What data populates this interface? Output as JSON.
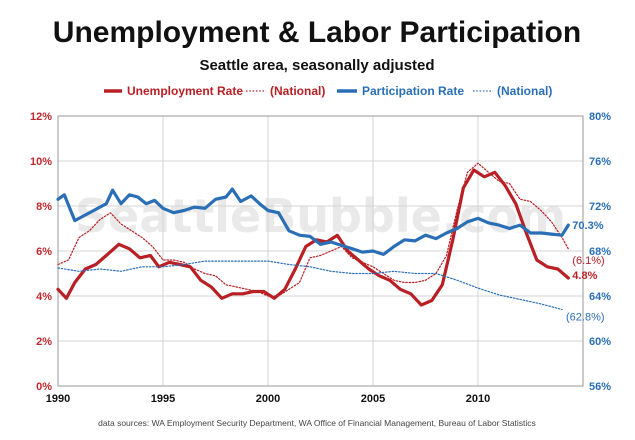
{
  "chart_data": {
    "type": "line",
    "title": "Unemployment & Labor Participation",
    "subtitle": "Seattle area, seasonally adjusted",
    "watermark": "SeattleBubble.com",
    "source": "data sources: WA Employment Security Department, WA Office of Financial Management, Bureau of Labor Statistics",
    "colors": {
      "unemployment": "#b82025",
      "participation": "#2a6fb6",
      "grid": "#d4d4d4"
    },
    "xlim": [
      1990,
      2015
    ],
    "x_ticks": [
      "1990",
      "1995",
      "2000",
      "2005",
      "2010"
    ],
    "y_left": {
      "lim": [
        0,
        12
      ],
      "ticks": [
        "0%",
        "2%",
        "4%",
        "6%",
        "8%",
        "10%",
        "12%"
      ]
    },
    "y_right": {
      "lim": [
        56,
        80
      ],
      "ticks": [
        "56%",
        "60%",
        "64%",
        "68%",
        "72%",
        "76%",
        "80%"
      ]
    },
    "legend_position": "top",
    "series": [
      {
        "name": "Unemployment Rate",
        "axis": "left",
        "style": "solid",
        "points": [
          [
            1990,
            4.3
          ],
          [
            1990.4,
            3.9
          ],
          [
            1990.8,
            4.6
          ],
          [
            1991.3,
            5.2
          ],
          [
            1991.8,
            5.4
          ],
          [
            1992.3,
            5.8
          ],
          [
            1992.9,
            6.3
          ],
          [
            1993.4,
            6.1
          ],
          [
            1993.9,
            5.7
          ],
          [
            1994.4,
            5.8
          ],
          [
            1994.8,
            5.3
          ],
          [
            1995.3,
            5.5
          ],
          [
            1995.8,
            5.4
          ],
          [
            1996.3,
            5.3
          ],
          [
            1996.8,
            4.7
          ],
          [
            1997.3,
            4.4
          ],
          [
            1997.8,
            3.9
          ],
          [
            1998.3,
            4.1
          ],
          [
            1998.8,
            4.1
          ],
          [
            1999.3,
            4.2
          ],
          [
            1999.8,
            4.2
          ],
          [
            2000.3,
            3.9
          ],
          [
            2000.8,
            4.3
          ],
          [
            2001.3,
            5.2
          ],
          [
            2001.8,
            6.2
          ],
          [
            2002.3,
            6.5
          ],
          [
            2002.8,
            6.4
          ],
          [
            2003.3,
            6.7
          ],
          [
            2003.8,
            6.0
          ],
          [
            2004.3,
            5.6
          ],
          [
            2004.8,
            5.2
          ],
          [
            2005.3,
            4.9
          ],
          [
            2005.8,
            4.7
          ],
          [
            2006.3,
            4.3
          ],
          [
            2006.8,
            4.1
          ],
          [
            2007.3,
            3.6
          ],
          [
            2007.8,
            3.8
          ],
          [
            2008.3,
            4.5
          ],
          [
            2008.8,
            6.5
          ],
          [
            2009.3,
            8.8
          ],
          [
            2009.8,
            9.6
          ],
          [
            2010.3,
            9.3
          ],
          [
            2010.8,
            9.5
          ],
          [
            2011.3,
            8.9
          ],
          [
            2011.8,
            8.1
          ],
          [
            2012.3,
            6.8
          ],
          [
            2012.8,
            5.6
          ],
          [
            2013.3,
            5.3
          ],
          [
            2013.8,
            5.2
          ],
          [
            2014.3,
            4.8
          ]
        ]
      },
      {
        "name": "(National)",
        "axis": "left",
        "style": "dotted",
        "points": [
          [
            1990,
            5.4
          ],
          [
            1990.5,
            5.6
          ],
          [
            1991,
            6.6
          ],
          [
            1991.5,
            6.9
          ],
          [
            1992,
            7.4
          ],
          [
            1992.5,
            7.7
          ],
          [
            1993,
            7.2
          ],
          [
            1993.5,
            6.9
          ],
          [
            1994,
            6.6
          ],
          [
            1994.5,
            6.2
          ],
          [
            1995,
            5.6
          ],
          [
            1995.5,
            5.6
          ],
          [
            1996,
            5.5
          ],
          [
            1996.5,
            5.2
          ],
          [
            1997,
            5.0
          ],
          [
            1997.5,
            4.9
          ],
          [
            1998,
            4.5
          ],
          [
            1998.5,
            4.4
          ],
          [
            1999,
            4.3
          ],
          [
            1999.5,
            4.2
          ],
          [
            2000,
            4.0
          ],
          [
            2000.5,
            4.0
          ],
          [
            2001,
            4.3
          ],
          [
            2001.5,
            4.6
          ],
          [
            2002,
            5.7
          ],
          [
            2002.5,
            5.8
          ],
          [
            2003,
            6.0
          ],
          [
            2003.5,
            6.2
          ],
          [
            2004,
            5.7
          ],
          [
            2004.5,
            5.5
          ],
          [
            2005,
            5.3
          ],
          [
            2005.5,
            5.0
          ],
          [
            2006,
            4.7
          ],
          [
            2006.5,
            4.6
          ],
          [
            2007,
            4.6
          ],
          [
            2007.5,
            4.7
          ],
          [
            2008,
            5.0
          ],
          [
            2008.5,
            5.8
          ],
          [
            2009,
            7.8
          ],
          [
            2009.5,
            9.5
          ],
          [
            2010,
            9.9
          ],
          [
            2010.5,
            9.5
          ],
          [
            2011,
            9.1
          ],
          [
            2011.5,
            9.0
          ],
          [
            2012,
            8.3
          ],
          [
            2012.5,
            8.2
          ],
          [
            2013,
            7.8
          ],
          [
            2013.5,
            7.3
          ],
          [
            2014,
            6.6
          ],
          [
            2014.3,
            6.1
          ]
        ]
      },
      {
        "name": "Participation Rate",
        "axis": "right",
        "style": "solid",
        "points": [
          [
            1990,
            72.6
          ],
          [
            1990.3,
            73.0
          ],
          [
            1990.8,
            70.7
          ],
          [
            1991.3,
            71.2
          ],
          [
            1991.8,
            71.7
          ],
          [
            1992.3,
            72.2
          ],
          [
            1992.6,
            73.4
          ],
          [
            1993.0,
            72.2
          ],
          [
            1993.4,
            73.0
          ],
          [
            1993.8,
            72.8
          ],
          [
            1994.2,
            72.2
          ],
          [
            1994.6,
            72.5
          ],
          [
            1995.0,
            71.8
          ],
          [
            1995.5,
            71.4
          ],
          [
            1996.0,
            71.6
          ],
          [
            1996.5,
            71.9
          ],
          [
            1997.0,
            71.8
          ],
          [
            1997.5,
            72.6
          ],
          [
            1998.0,
            72.8
          ],
          [
            1998.3,
            73.5
          ],
          [
            1998.7,
            72.4
          ],
          [
            1999.2,
            72.9
          ],
          [
            1999.6,
            72.2
          ],
          [
            2000.0,
            71.6
          ],
          [
            2000.5,
            71.4
          ],
          [
            2001.0,
            69.8
          ],
          [
            2001.5,
            69.4
          ],
          [
            2002.0,
            69.3
          ],
          [
            2002.5,
            68.6
          ],
          [
            2003.0,
            68.8
          ],
          [
            2003.5,
            68.5
          ],
          [
            2004.0,
            68.2
          ],
          [
            2004.5,
            67.9
          ],
          [
            2005.0,
            68.0
          ],
          [
            2005.5,
            67.7
          ],
          [
            2006.0,
            68.4
          ],
          [
            2006.5,
            69.0
          ],
          [
            2007.0,
            68.9
          ],
          [
            2007.5,
            69.4
          ],
          [
            2008.0,
            69.1
          ],
          [
            2008.5,
            69.6
          ],
          [
            2009.0,
            70.0
          ],
          [
            2009.5,
            70.6
          ],
          [
            2010.0,
            70.9
          ],
          [
            2010.5,
            70.5
          ],
          [
            2011.0,
            70.3
          ],
          [
            2011.5,
            70.0
          ],
          [
            2012.0,
            70.3
          ],
          [
            2012.5,
            69.6
          ],
          [
            2013.0,
            69.6
          ],
          [
            2013.5,
            69.5
          ],
          [
            2014.0,
            69.4
          ],
          [
            2014.3,
            70.3
          ]
        ]
      },
      {
        "name": "(National)",
        "axis": "right",
        "style": "dotted",
        "points": [
          [
            1990,
            66.5
          ],
          [
            1991,
            66.2
          ],
          [
            1992,
            66.4
          ],
          [
            1993,
            66.2
          ],
          [
            1994,
            66.6
          ],
          [
            1995,
            66.6
          ],
          [
            1996,
            66.8
          ],
          [
            1997,
            67.1
          ],
          [
            1998,
            67.1
          ],
          [
            1999,
            67.1
          ],
          [
            2000,
            67.1
          ],
          [
            2001,
            66.8
          ],
          [
            2002,
            66.6
          ],
          [
            2003,
            66.2
          ],
          [
            2004,
            66.0
          ],
          [
            2005,
            66.0
          ],
          [
            2006,
            66.2
          ],
          [
            2007,
            66.0
          ],
          [
            2008,
            66.0
          ],
          [
            2009,
            65.4
          ],
          [
            2010,
            64.7
          ],
          [
            2011,
            64.1
          ],
          [
            2012,
            63.7
          ],
          [
            2013,
            63.3
          ],
          [
            2014,
            62.8
          ]
        ]
      }
    ],
    "end_labels": [
      {
        "text": "70.3%",
        "series": 2
      },
      {
        "text": "(6.1%)",
        "series": 1
      },
      {
        "text": "4.8%",
        "series": 0
      },
      {
        "text": "(62.8%)",
        "series": 3
      }
    ]
  }
}
